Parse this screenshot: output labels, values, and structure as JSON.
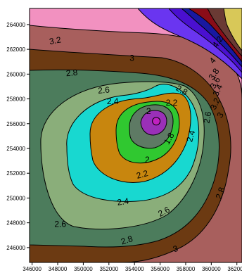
{
  "chart_data": {
    "type": "contour",
    "title": "",
    "xlabel": "",
    "ylabel": "",
    "xlim": [
      345800,
      362400
    ],
    "ylim": [
      244800,
      265300
    ],
    "x_ticks": [
      {
        "value": 346000,
        "label": "346000"
      },
      {
        "value": 348000,
        "label": "348000"
      },
      {
        "value": 350000,
        "label": "350000"
      },
      {
        "value": 352000,
        "label": "352000"
      },
      {
        "value": 354000,
        "label": "354000"
      },
      {
        "value": 356000,
        "label": "356000"
      },
      {
        "value": 358000,
        "label": "358000"
      },
      {
        "value": 360000,
        "label": "360000"
      },
      {
        "value": 362000,
        "label": "362000"
      }
    ],
    "y_ticks": [
      {
        "value": 246000,
        "label": "246000"
      },
      {
        "value": 248000,
        "label": "248000"
      },
      {
        "value": 250000,
        "label": "250000"
      },
      {
        "value": 252000,
        "label": "252000"
      },
      {
        "value": 254000,
        "label": "254000"
      },
      {
        "value": 256000,
        "label": "256000"
      },
      {
        "value": 258000,
        "label": "258000"
      },
      {
        "value": 260000,
        "label": "260000"
      },
      {
        "value": 262000,
        "label": "262000"
      },
      {
        "value": 264000,
        "label": "264000"
      }
    ],
    "center_marker": {
      "x": 355700,
      "y": 256200
    },
    "fill_bands": [
      {
        "color": "#f291c0",
        "corner_x": 346400,
        "corner_y": 265200
      },
      {
        "color": "#a85f5d",
        "corner_x": 346500,
        "corner_y": 263800
      },
      {
        "color": "#6c3a12",
        "corner_x": 346500,
        "corner_y": 262100
      },
      {
        "color": "#4c7c5c",
        "corner_x": 346500,
        "corner_y": 260500
      },
      {
        "color": "#8aae7a",
        "corner_x": 350300,
        "corner_y": 259000
      },
      {
        "color": "#18d8d0",
        "corner_x": 352800,
        "corner_y": 258400
      },
      {
        "color": "#c8860e",
        "corner_x": 354300,
        "corner_y": 258100
      },
      {
        "color": "#30c830",
        "corner_x": 355100,
        "corner_y": 257500
      },
      {
        "color": "#5e7a64",
        "corner_x": 355500,
        "corner_y": 257300
      },
      {
        "color": "#9a30b8",
        "corner_x": 355700,
        "corner_y": 256900
      },
      {
        "color": "#c020c0",
        "corner_x": 355700,
        "corner_y": 256500
      },
      {
        "color": "#6a35f0",
        "corner_x": 358500,
        "corner_y": 265300
      },
      {
        "color": "#4a10d0",
        "corner_x": 359100,
        "corner_y": 265300
      },
      {
        "color": "#1818a0",
        "corner_x": 359500,
        "corner_y": 265300
      },
      {
        "color": "#8a0c18",
        "corner_x": 359900,
        "corner_y": 265300
      },
      {
        "color": "#6a3a34",
        "corner_x": 360300,
        "corner_y": 265300
      },
      {
        "color": "#d8c858",
        "corner_x": 361100,
        "corner_y": 265300
      }
    ],
    "contours": [
      {
        "level": "3.2",
        "label": "3.2",
        "x": 347800,
        "y": 262700,
        "angle": -10
      },
      {
        "level": "3",
        "label": "3",
        "x": 353800,
        "y": 261300,
        "angle": 0
      },
      {
        "level": "2.8",
        "label": "2.8",
        "x": 349100,
        "y": 260100,
        "angle": -5
      },
      {
        "level": "2.8",
        "label": "2.8",
        "x": 357700,
        "y": 258700,
        "angle": 30
      },
      {
        "level": "2.8",
        "label": "2.8",
        "x": 360700,
        "y": 250400,
        "angle": -70
      },
      {
        "level": "2.8",
        "label": "2.8",
        "x": 353400,
        "y": 246600,
        "angle": -18
      },
      {
        "level": "2.6",
        "label": "2.6",
        "x": 351600,
        "y": 258700,
        "angle": -5
      },
      {
        "level": "2.6",
        "label": "2.6",
        "x": 359700,
        "y": 256500,
        "angle": -80
      },
      {
        "level": "2.6",
        "label": "2.6",
        "x": 356300,
        "y": 248900,
        "angle": -28
      },
      {
        "level": "2.6",
        "label": "2.6",
        "x": 348200,
        "y": 247900,
        "angle": 0
      },
      {
        "level": "2.4",
        "label": "2.4",
        "x": 352300,
        "y": 257800,
        "angle": 0
      },
      {
        "level": "2.4",
        "label": "2.4",
        "x": 358400,
        "y": 255000,
        "angle": -75
      },
      {
        "level": "2.4",
        "label": "2.4",
        "x": 353100,
        "y": 249700,
        "angle": -8
      },
      {
        "level": "2.2",
        "label": "2.2",
        "x": 356900,
        "y": 257700,
        "angle": 0
      },
      {
        "level": "2.2",
        "label": "2.2",
        "x": 354600,
        "y": 251900,
        "angle": -15
      },
      {
        "level": "2",
        "label": "2",
        "x": 355100,
        "y": 257000,
        "angle": 0
      },
      {
        "level": "2",
        "label": "2",
        "x": 355000,
        "y": 253100,
        "angle": 0
      },
      {
        "level": "1.8",
        "label": "1.8",
        "x": 356700,
        "y": 254800,
        "angle": -60
      },
      {
        "level": "3",
        "label": "3",
        "x": 360700,
        "y": 256700,
        "angle": -60
      },
      {
        "level": "3",
        "label": "3",
        "x": 357200,
        "y": 245900,
        "angle": -20
      },
      {
        "level": "3.2",
        "label": "3.2",
        "x": 360300,
        "y": 257600,
        "angle": -65
      },
      {
        "level": "3.4",
        "label": "3.4",
        "x": 360500,
        "y": 258700,
        "angle": -65
      },
      {
        "level": "3.6",
        "label": "3.6",
        "x": 360300,
        "y": 259300,
        "angle": -60
      },
      {
        "level": "3.8",
        "label": "3.8",
        "x": 360200,
        "y": 260000,
        "angle": -55
      },
      {
        "level": "4",
        "label": "4",
        "x": 360100,
        "y": 261100,
        "angle": -50
      },
      {
        "level": "4.2",
        "label": "4.2",
        "x": 360500,
        "y": 262600,
        "angle": -55
      }
    ]
  }
}
